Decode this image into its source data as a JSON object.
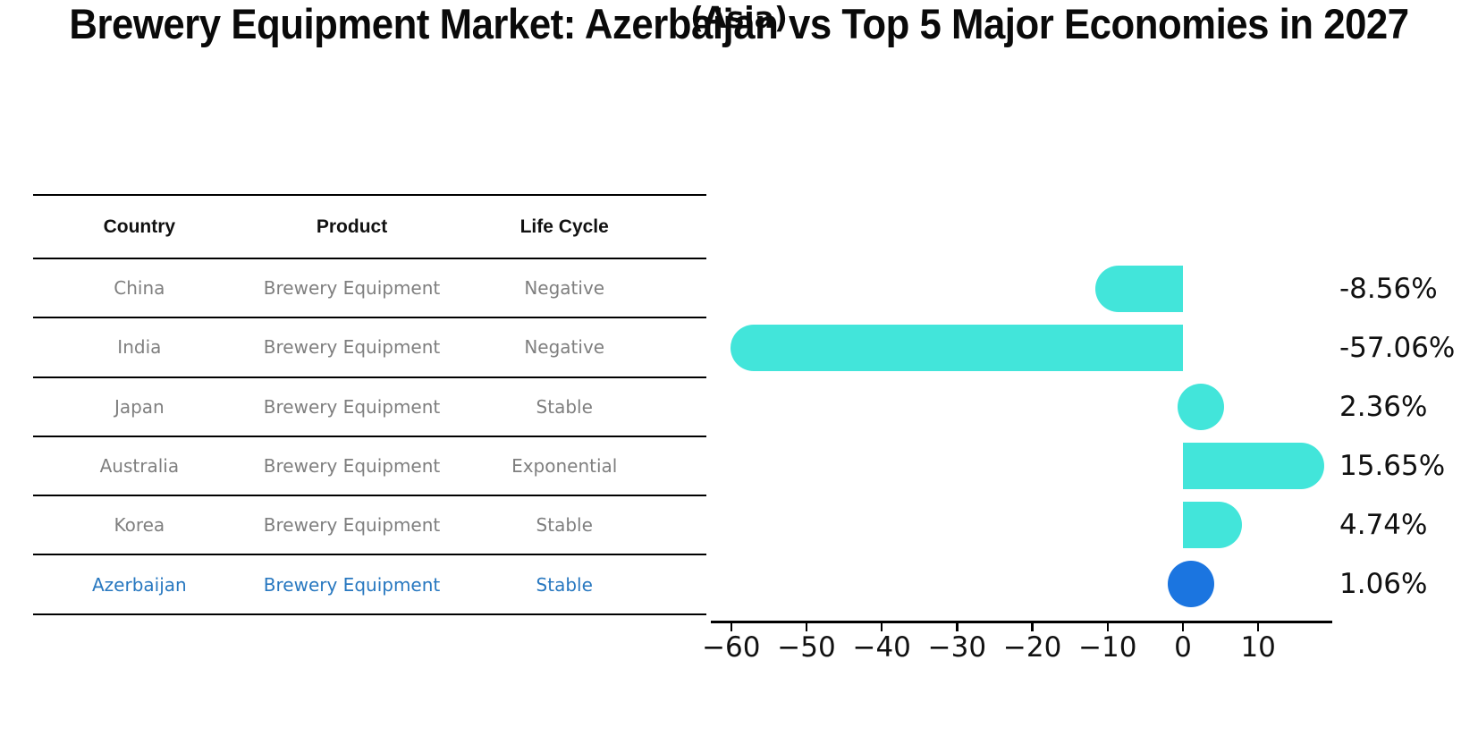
{
  "title": "Brewery Equipment Market: Azerbaijan vs Top 5 Major Economies in 2027",
  "subtitle": "(Asia)",
  "table": {
    "headers": [
      "Country",
      "Product",
      "Life Cycle"
    ],
    "rows": [
      {
        "country": "China",
        "product": "Brewery Equipment",
        "life_cycle": "Negative",
        "highlight": false
      },
      {
        "country": "India",
        "product": "Brewery Equipment",
        "life_cycle": "Negative",
        "highlight": false
      },
      {
        "country": "Japan",
        "product": "Brewery Equipment",
        "life_cycle": "Stable",
        "highlight": false
      },
      {
        "country": "Australia",
        "product": "Brewery Equipment",
        "life_cycle": "Exponential",
        "highlight": false
      },
      {
        "country": "Korea",
        "product": "Brewery Equipment",
        "life_cycle": "Stable",
        "highlight": false
      },
      {
        "country": "Azerbaijan",
        "product": "Brewery Equipment",
        "life_cycle": "Stable",
        "highlight": true
      }
    ]
  },
  "chart_data": {
    "type": "bar",
    "orientation": "horizontal",
    "categories": [
      "China",
      "India",
      "Japan",
      "Australia",
      "Korea",
      "Azerbaijan"
    ],
    "values": [
      -8.56,
      -57.06,
      2.36,
      15.65,
      4.74,
      1.06
    ],
    "value_labels": [
      "-8.56%",
      "-57.06%",
      "2.36%",
      "15.65%",
      "4.74%",
      "1.06%"
    ],
    "x_ticks": [
      -60,
      -50,
      -40,
      -30,
      -20,
      -10,
      0,
      10
    ],
    "x_tick_labels": [
      "−60",
      "−50",
      "−40",
      "−30",
      "−20",
      "−10",
      "0",
      "10"
    ],
    "xlim": [
      -62.5,
      19.8
    ],
    "grid": false,
    "legend": null,
    "bar_color": "#42E5DA",
    "highlight_bar_color": "#1B75E0",
    "highlight_index": 5
  },
  "colors": {
    "background": "#ffffff",
    "bar_cyan": "#42E5DA",
    "bar_blue": "#1B75E0",
    "highlight_text": "#2878C0",
    "row_text": "#7f7f7f",
    "header_text": "#111111",
    "axis": "#000000"
  }
}
